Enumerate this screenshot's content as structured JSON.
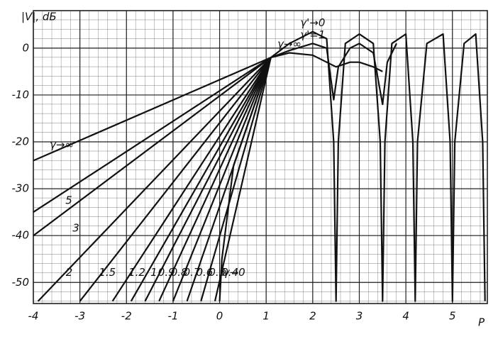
{
  "chart_data": {
    "type": "line",
    "ylabel": "|V|, dБ",
    "xlabel": "P",
    "xlim": [
      -4,
      5.75
    ],
    "ylim": [
      -54.5,
      8
    ],
    "xticks": [
      -4,
      -3,
      -2,
      -1,
      0,
      1,
      2,
      3,
      4,
      5
    ],
    "yticks": [
      0,
      -10,
      -20,
      -30,
      -40,
      -50
    ],
    "grid": true,
    "color": "#111111",
    "series": [
      {
        "name": "γ→∞",
        "x": [
          -4,
          1.1
        ],
        "values": [
          -24,
          -2
        ]
      },
      {
        "name": "5",
        "x": [
          -4,
          1.1
        ],
        "values": [
          -35,
          -2
        ]
      },
      {
        "name": "3",
        "x": [
          -4,
          1.1
        ],
        "values": [
          -40,
          -2
        ]
      },
      {
        "name": "2",
        "x": [
          -3.9,
          1.1
        ],
        "values": [
          -54,
          -2
        ]
      },
      {
        "name": "1.5",
        "x": [
          -3.0,
          1.1
        ],
        "values": [
          -54,
          -2
        ]
      },
      {
        "name": "1.2",
        "x": [
          -2.3,
          1.1
        ],
        "values": [
          -54,
          -2
        ]
      },
      {
        "name": "1",
        "x": [
          -1.9,
          1.1
        ],
        "values": [
          -54,
          -2
        ]
      },
      {
        "name": "0.9",
        "x": [
          -1.6,
          1.1
        ],
        "values": [
          -54,
          -2
        ]
      },
      {
        "name": "0.8",
        "x": [
          -1.3,
          1.1
        ],
        "values": [
          -54,
          -2
        ]
      },
      {
        "name": "0.7",
        "x": [
          -1.0,
          1.1
        ],
        "values": [
          -54,
          -2
        ]
      },
      {
        "name": "0.6",
        "x": [
          -0.7,
          1.1
        ],
        "values": [
          -54,
          -2
        ]
      },
      {
        "name": "0.5",
        "x": [
          -0.4,
          1.1
        ],
        "values": [
          -54,
          -2
        ]
      },
      {
        "name": "0.4",
        "x": [
          -0.1,
          1.1
        ],
        "values": [
          -54,
          -2
        ]
      },
      {
        "name": "γ→0",
        "x": [
          0.0,
          0.05,
          0.3,
          1.1
        ],
        "values": [
          -54,
          -45,
          -25,
          -2
        ]
      },
      {
        "name": "γ'→0",
        "x": [
          1.1,
          1.5,
          2,
          2.3,
          2.45,
          2.5,
          2.55,
          2.7,
          3,
          3.3,
          3.45,
          3.5,
          3.55,
          3.7,
          4,
          4.15,
          4.2,
          4.25,
          4.45,
          4.8,
          4.95,
          5.0,
          5.05,
          5.25,
          5.5,
          5.65,
          5.7
        ],
        "values": [
          -2,
          1,
          3.5,
          2,
          -20,
          -54,
          -20,
          1,
          3,
          1,
          -20,
          -54,
          -20,
          1,
          3,
          -20,
          -54,
          -20,
          1,
          3,
          -20,
          -54,
          -20,
          1,
          3,
          -20,
          -54
        ]
      },
      {
        "name": "γ'=1",
        "x": [
          1.1,
          1.5,
          2,
          2.3,
          2.45,
          2.55,
          2.8,
          3,
          3.3,
          3.5,
          3.6,
          3.8
        ],
        "values": [
          -2,
          -0.5,
          1,
          0,
          -11,
          -4,
          0,
          1,
          -1,
          -12,
          -3,
          1
        ]
      },
      {
        "name": "γ→∞",
        "x": [
          1.1,
          1.5,
          2,
          2.3,
          2.5,
          2.8,
          3,
          3.3,
          3.5
        ],
        "values": [
          -2,
          -1,
          -1.5,
          -3,
          -4,
          -3,
          -3,
          -4,
          -5
        ]
      }
    ]
  }
}
